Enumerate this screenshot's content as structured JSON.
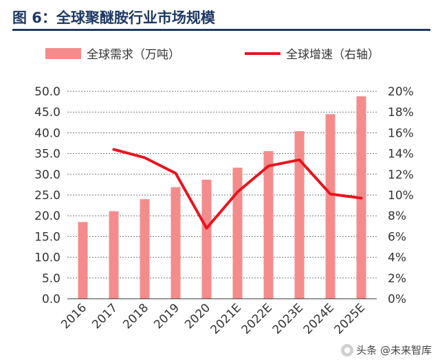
{
  "figure": {
    "title": "图 6：全球聚醚胺行业市场规模"
  },
  "watermark": {
    "text": "头条 @未来智库"
  },
  "chart_data": {
    "type": "bar",
    "categories": [
      "2016",
      "2017",
      "2018",
      "2019",
      "2020",
      "2021E",
      "2022E",
      "2023E",
      "2024E",
      "2025E"
    ],
    "series": [
      {
        "name": "全球需求（万吨）",
        "type": "bar",
        "axis": "left",
        "color": "#f48c8c",
        "values": [
          18.5,
          21.1,
          24.0,
          26.9,
          28.7,
          31.6,
          35.6,
          40.4,
          44.5,
          48.8
        ]
      },
      {
        "name": "全球增速（右轴）",
        "type": "line",
        "axis": "right",
        "color": "#e8141e",
        "values": [
          null,
          14.4,
          13.6,
          12.1,
          6.8,
          10.3,
          12.8,
          13.4,
          10.1,
          9.7
        ]
      }
    ],
    "y_left": {
      "min": 0,
      "max": 50,
      "step": 5,
      "ticks": [
        "0.0",
        "5.0",
        "10.0",
        "15.0",
        "20.0",
        "25.0",
        "30.0",
        "35.0",
        "40.0",
        "45.0",
        "50.0"
      ]
    },
    "y_right": {
      "min": 0,
      "max": 20,
      "step": 2,
      "ticks": [
        "0%",
        "2%",
        "4%",
        "6%",
        "8%",
        "10%",
        "12%",
        "14%",
        "16%",
        "18%",
        "20%"
      ]
    },
    "grid": true,
    "legend": "top"
  }
}
